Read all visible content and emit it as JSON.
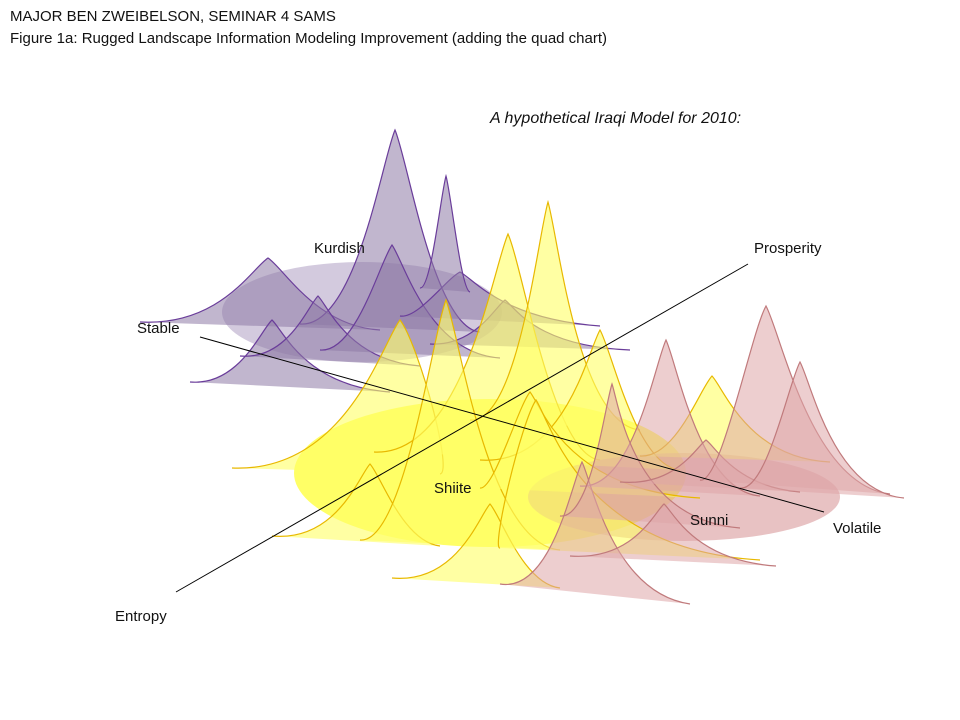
{
  "header": {
    "line1": "MAJOR BEN ZWEIBELSON, SEMINAR 4 SAMS",
    "line2": "Figure 1a: Rugged Landscape Information Modeling Improvement (adding the quad chart)"
  },
  "caption": "A hypothetical Iraqi Model for 2010:",
  "groups": {
    "kurdish": "Kurdish",
    "shiite": "Shiite",
    "sunni": "Sunni"
  },
  "axes": {
    "stable": "Stable",
    "volatile": "Volatile",
    "prosperity": "Prosperity",
    "entropy": "Entropy"
  },
  "colors": {
    "kurdish_fill": "#8e7aa6",
    "kurdish_line": "#6a3d9a",
    "shiite_fill": "#ffff66",
    "shiite_line": "#e8b800",
    "sunni_fill": "#dea6a8",
    "sunni_line": "#c07a7c",
    "axis_line": "#000000"
  }
}
